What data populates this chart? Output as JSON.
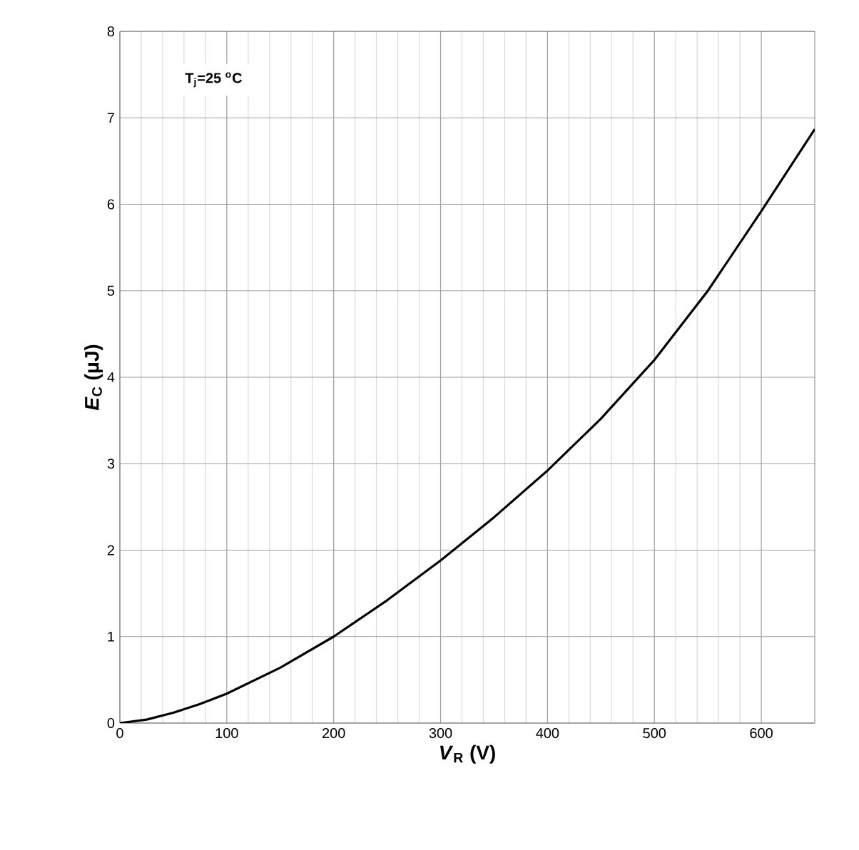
{
  "chart_data": {
    "type": "line",
    "xlabel": "*V*$_{R}$ (V)",
    "ylabel": "*E*$_{C}$ (μJ)",
    "annotations": [
      "T$_{j}$=25 $^{o}$C"
    ],
    "x": [
      0,
      25,
      50,
      75,
      100,
      150,
      200,
      250,
      300,
      350,
      400,
      450,
      500,
      550,
      600,
      650
    ],
    "series": [
      {
        "color": "#000000",
        "values": [
          0,
          0.04,
          0.12,
          0.22,
          0.34,
          0.64,
          1.0,
          1.42,
          1.88,
          2.38,
          2.92,
          3.52,
          4.2,
          5.0,
          5.92,
          6.87
        ]
      }
    ],
    "xlim": [
      0,
      650
    ],
    "ylim": [
      0,
      8
    ],
    "xticks": [
      0,
      100,
      200,
      300,
      400,
      500,
      600
    ],
    "yticks": [
      0,
      1,
      2,
      3,
      4,
      5,
      6,
      7,
      8
    ],
    "grid": true,
    "marker": "none",
    "line_style": "solid"
  }
}
